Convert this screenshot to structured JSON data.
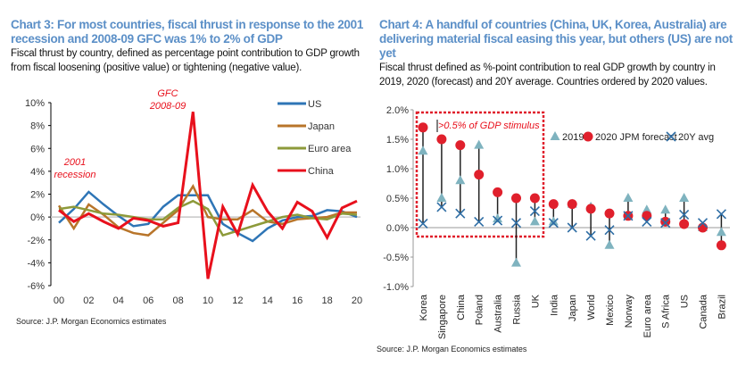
{
  "chart_data": [
    {
      "type": "line",
      "title": "Chart 3: For most countries, fiscal thrust in response to the 2001 recession and 2008-09 GFC was 1% to 2% of GDP",
      "subtitle": "Fiscal thrust by country, defined as percentage point contribution to GDP growth from fiscal loosening (positive value) or tightening (negative value).",
      "source": "Source: J.P. Morgan Economics estimates",
      "x": [
        2000,
        2001,
        2002,
        2003,
        2004,
        2005,
        2006,
        2007,
        2008,
        2009,
        2010,
        2011,
        2012,
        2013,
        2014,
        2015,
        2016,
        2017,
        2018,
        2019,
        2020
      ],
      "x_tick_labels": [
        "00",
        "02",
        "04",
        "06",
        "08",
        "10",
        "12",
        "14",
        "16",
        "18",
        "20"
      ],
      "y_tick_labels": [
        "10%",
        "8%",
        "6%",
        "4%",
        "2%",
        "0%",
        "-2%",
        "-4%",
        "-6%"
      ],
      "ylim": [
        -6,
        10
      ],
      "legend_position": "top-right",
      "annotations": [
        {
          "text": "GFC\n2008-09",
          "color": "#e8101c"
        },
        {
          "text": "2001\nrecession",
          "color": "#e8101c"
        }
      ],
      "series": [
        {
          "name": "US",
          "color": "#2e75b6",
          "values": [
            -0.5,
            0.7,
            2.2,
            1.1,
            0.1,
            -0.8,
            -0.6,
            0.9,
            1.9,
            1.9,
            1.9,
            -0.6,
            -1.4,
            -2.1,
            -1.0,
            -0.3,
            0.0,
            0.1,
            0.6,
            0.5,
            0.0
          ]
        },
        {
          "name": "Japan",
          "color": "#b8752a",
          "values": [
            1.0,
            -1.0,
            1.1,
            0.2,
            -0.9,
            -1.4,
            -1.6,
            -0.5,
            0.6,
            2.7,
            0.0,
            -0.2,
            -0.2,
            0.6,
            -0.4,
            -0.6,
            -0.2,
            -0.1,
            0.0,
            0.4,
            0.4
          ]
        },
        {
          "name": "Euro area",
          "color": "#8d9a3a",
          "values": [
            0.7,
            0.9,
            0.6,
            0.3,
            0.2,
            0.0,
            -0.2,
            -0.2,
            0.8,
            1.4,
            0.7,
            -1.6,
            -1.2,
            -0.8,
            -0.4,
            0.0,
            0.2,
            -0.1,
            -0.2,
            0.3,
            0.2
          ]
        },
        {
          "name": "China",
          "color": "#e8101c",
          "values": [
            0.6,
            -0.4,
            0.3,
            -0.4,
            -1.0,
            -0.1,
            -0.3,
            -0.8,
            -0.5,
            9.2,
            -5.4,
            0.9,
            -1.5,
            2.8,
            0.5,
            -1.0,
            1.3,
            0.5,
            -1.8,
            0.8,
            1.4
          ]
        }
      ]
    },
    {
      "type": "scatter",
      "title": "Chart 4: A handful of countries (China, UK, Korea, Australia) are delivering material fiscal easing this year, but others (US) are not yet",
      "subtitle": "Fiscal thrust defined as %-point contribution to real GDP growth by country in 2019, 2020 (forecast) and 20Y average. Countries ordered by 2020 values.",
      "source": "Source: J.P. Morgan Economics estimates",
      "categories": [
        "Korea",
        "Singapore",
        "China",
        "Poland",
        "Australia",
        "Russia",
        "UK",
        "India",
        "Japan",
        "World",
        "Mexico",
        "Norway",
        "Euro area",
        "S Africa",
        "US",
        "Canada",
        "Brazil"
      ],
      "y_tick_labels": [
        "2.0%",
        "1.5%",
        "1.0%",
        "0.5%",
        "0.0%",
        "-0.5%",
        "-1.0%"
      ],
      "ylim": [
        -1.0,
        2.0
      ],
      "legend_position": "top-right",
      "annotation": {
        "text": ">0.5% of GDP stimulus",
        "color": "#e8101c"
      },
      "series": [
        {
          "name": "2019",
          "marker": "triangle",
          "color": "#7fb3bf",
          "values": [
            1.3,
            0.5,
            0.8,
            1.4,
            0.15,
            -0.6,
            0.1,
            0.1,
            0.4,
            0.35,
            -0.3,
            0.5,
            0.3,
            0.3,
            0.5,
            0.0,
            -0.08
          ]
        },
        {
          "name": "2020 JPM forecast",
          "marker": "circle",
          "color": "#e0202c",
          "values": [
            1.7,
            1.5,
            1.4,
            0.9,
            0.6,
            0.5,
            0.5,
            0.4,
            0.4,
            0.32,
            0.24,
            0.2,
            0.2,
            0.1,
            0.06,
            0.0,
            -0.3
          ]
        },
        {
          "name": "20Y avg",
          "marker": "x",
          "color": "#2e6da4",
          "values": [
            0.07,
            0.35,
            0.24,
            0.1,
            0.12,
            0.08,
            0.28,
            0.08,
            0.0,
            -0.14,
            -0.04,
            0.2,
            0.1,
            0.08,
            0.22,
            0.08,
            0.23
          ]
        }
      ]
    }
  ]
}
